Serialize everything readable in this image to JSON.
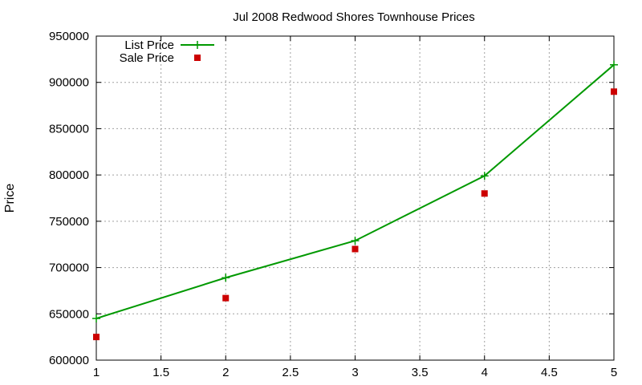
{
  "chart_data": {
    "type": "line",
    "title": "Jul 2008 Redwood Shores Townhouse Prices",
    "xlabel": "",
    "ylabel": "Price",
    "xlim": [
      1,
      5
    ],
    "ylim": [
      600000,
      950000
    ],
    "x_ticks": [
      "1",
      "1.5",
      "2",
      "2.5",
      "3",
      "3.5",
      "4",
      "4.5",
      "5"
    ],
    "y_ticks": [
      "600000",
      "650000",
      "700000",
      "750000",
      "800000",
      "850000",
      "900000",
      "950000"
    ],
    "grid": true,
    "legend_position": "top-left",
    "series": [
      {
        "name": "List Price",
        "style": "line-with-plus-markers",
        "color": "#009900",
        "x": [
          1,
          2,
          3,
          4,
          5
        ],
        "values": [
          645000,
          689000,
          729000,
          799000,
          919000
        ]
      },
      {
        "name": "Sale Price",
        "style": "square-markers",
        "color": "#cc0000",
        "x": [
          1,
          2,
          3,
          4,
          5
        ],
        "values": [
          625000,
          667000,
          720000,
          780000,
          890000
        ]
      }
    ]
  }
}
